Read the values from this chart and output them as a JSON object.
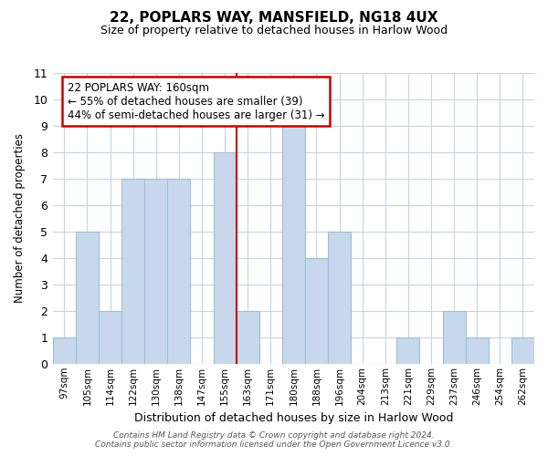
{
  "title": "22, POPLARS WAY, MANSFIELD, NG18 4UX",
  "subtitle": "Size of property relative to detached houses in Harlow Wood",
  "xlabel": "Distribution of detached houses by size in Harlow Wood",
  "ylabel": "Number of detached properties",
  "bar_labels": [
    "97sqm",
    "105sqm",
    "114sqm",
    "122sqm",
    "130sqm",
    "138sqm",
    "147sqm",
    "155sqm",
    "163sqm",
    "171sqm",
    "180sqm",
    "188sqm",
    "196sqm",
    "204sqm",
    "213sqm",
    "221sqm",
    "229sqm",
    "237sqm",
    "246sqm",
    "254sqm",
    "262sqm"
  ],
  "bar_values": [
    1,
    5,
    2,
    7,
    7,
    7,
    0,
    8,
    2,
    0,
    9,
    4,
    5,
    0,
    0,
    1,
    0,
    2,
    1,
    0,
    1
  ],
  "bar_color": "#c8d8ec",
  "bar_edge_color": "#a0bcd4",
  "reference_line_x": 7.5,
  "reference_line_color": "#cc0000",
  "ylim": [
    0,
    11
  ],
  "yticks": [
    0,
    1,
    2,
    3,
    4,
    5,
    6,
    7,
    8,
    9,
    10,
    11
  ],
  "annotation_title": "22 POPLARS WAY: 160sqm",
  "annotation_line1": "← 55% of detached houses are smaller (39)",
  "annotation_line2": "44% of semi-detached houses are larger (31) →",
  "annotation_box_color": "#ffffff",
  "annotation_box_edge": "#cc0000",
  "footer_line1": "Contains HM Land Registry data © Crown copyright and database right 2024.",
  "footer_line2": "Contains public sector information licensed under the Open Government Licence v3.0.",
  "background_color": "#ffffff",
  "grid_color": "#c8d4e0"
}
